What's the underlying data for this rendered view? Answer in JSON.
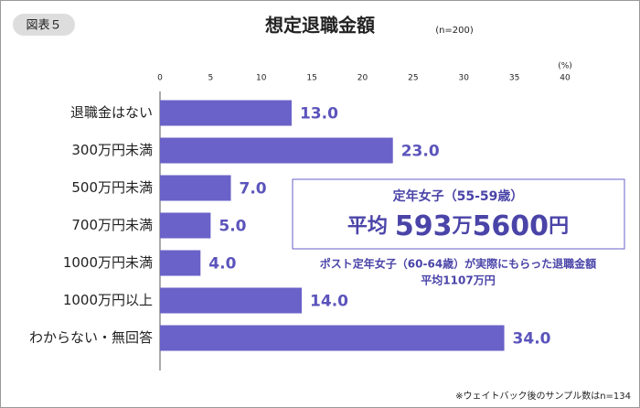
{
  "badge": "図表５",
  "chart_data": {
    "type": "bar",
    "orientation": "horizontal",
    "title": "想定退職金額",
    "subtitle": "(n=200)",
    "unit": "(%)",
    "categories": [
      "退職金はない",
      "300万円未満",
      "500万円未満",
      "700万円未満",
      "1000万円未満",
      "1000万円以上",
      "わからない・無回答"
    ],
    "values": [
      13,
      23,
      7,
      5,
      4,
      14,
      34
    ],
    "value_labels": [
      "13.0",
      "23.0",
      "7.0",
      "5.0",
      "4.0",
      "14.0",
      "34.0"
    ],
    "color": "#6a62c8",
    "xlim": [
      0,
      40
    ],
    "xticks": [
      0,
      5,
      10,
      15,
      20,
      25,
      30,
      35,
      40
    ],
    "grid": false
  },
  "callout": {
    "title": "定年女子（55-59歳）",
    "main": [
      "平均",
      "593",
      "万",
      "5600",
      "円"
    ],
    "note": "ポスト定年女子（60-64歳）が実際にもらった退職金額",
    "note_value": "平均1107万円"
  },
  "footnote": "※ウェイトバック後のサンプル数はn=134"
}
